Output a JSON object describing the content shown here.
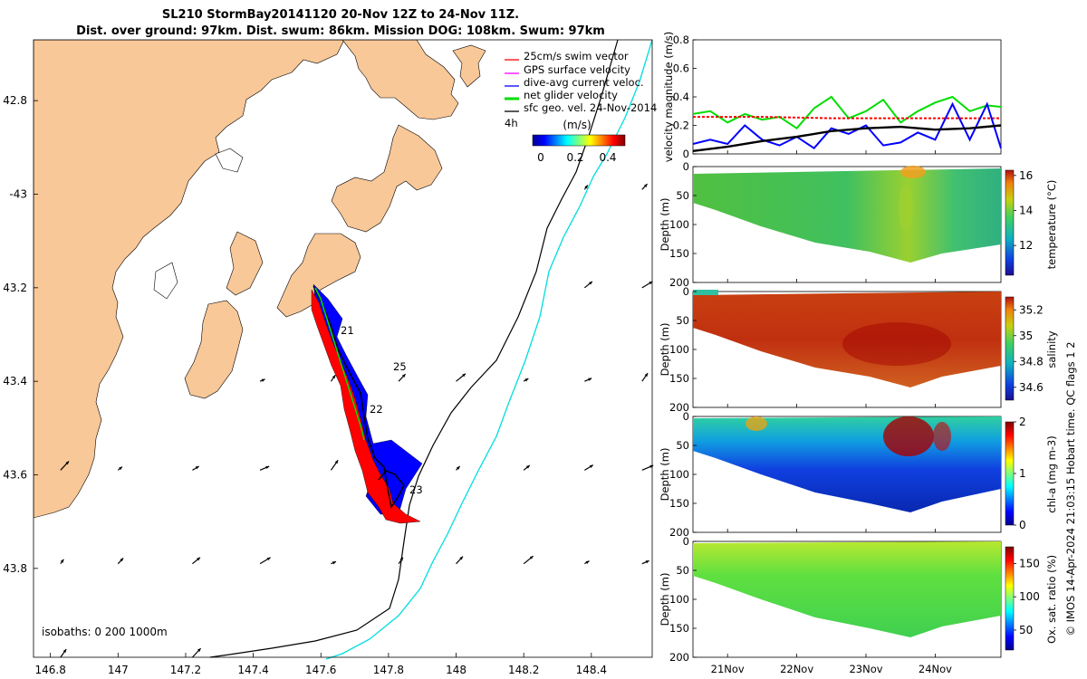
{
  "figure": {
    "title_line1": "SL210 StormBay20141120 20-Nov 12Z to 24-Nov 11Z.",
    "title_line2": "Dist. over ground: 97km. Dist. swum: 86km. Mission DOG: 108km. Swum: 97km",
    "credit": "© IMOS 14-Apr-2024 21:03:15 Hobart time. QC flags 1  2"
  },
  "map": {
    "legend": [
      {
        "label": "25cm/s swim vector",
        "color": "#ff0000"
      },
      {
        "label": "GPS surface velocity",
        "color": "#ff00ff"
      },
      {
        "label": "dive-avg current veloc.",
        "color": "#0000ff"
      },
      {
        "label": "net glider velocity",
        "color": "#00dd00"
      },
      {
        "label": "sfc geo. vel. 24-Nov-2014",
        "color": "#000000"
      }
    ],
    "legend_tag": "4h",
    "colorbar_unit": "(m/s)",
    "colorbar_ticks": [
      "0",
      "0.2",
      "0.4"
    ],
    "isobath_label": "isobaths: 0   200  1000m",
    "waypoints": [
      "21",
      "25",
      "22",
      "23"
    ],
    "land_color": "#f9c898",
    "isobath_200_color": "#000000",
    "isobath_1000_color": "#00dddd"
  },
  "chart_data": [
    {
      "type": "map",
      "xlabel": "",
      "ylabel": "",
      "xlim": [
        146.75,
        148.58
      ],
      "ylim": [
        -43.99,
        -42.67
      ],
      "xticks": [
        146.8,
        147,
        147.2,
        147.4,
        147.6,
        147.8,
        148,
        148.2,
        148.4
      ],
      "xtick_labels": [
        "146.8",
        "147",
        "147.2",
        "147.4",
        "147.6",
        "147.8",
        "148",
        "148.2",
        "148.4"
      ],
      "yticks": [
        -42.8,
        -43,
        -43.2,
        -43.4,
        -43.6,
        -43.8
      ],
      "ytick_labels": [
        "42.8",
        "-43",
        "43.2",
        "43.4",
        "43.6",
        "43.8"
      ],
      "glider_track": [
        [
          147.57,
          -43.19
        ],
        [
          147.59,
          -43.24
        ],
        [
          147.62,
          -43.3
        ],
        [
          147.65,
          -43.37
        ],
        [
          147.68,
          -43.42
        ],
        [
          147.7,
          -43.46
        ],
        [
          147.72,
          -43.52
        ],
        [
          147.75,
          -43.58
        ],
        [
          147.77,
          -43.64
        ],
        [
          147.8,
          -43.69
        ],
        [
          147.83,
          -43.72
        ]
      ]
    },
    {
      "type": "line",
      "ylabel": "velocity magnitude (m/s)",
      "xlim": [
        20.5,
        24.95
      ],
      "ylim": [
        0,
        0.8
      ],
      "yticks": [
        "0",
        "0.2",
        "0.4",
        "0.6",
        "0.8"
      ],
      "series": [
        {
          "name": "",
          "color": "#00dd00",
          "x": [
            20.5,
            20.75,
            21.0,
            21.25,
            21.5,
            21.75,
            22.0,
            22.25,
            22.5,
            22.75,
            23.0,
            23.25,
            23.5,
            23.75,
            24.0,
            24.25,
            24.5,
            24.75,
            24.95
          ],
          "y": [
            0.28,
            0.3,
            0.22,
            0.28,
            0.24,
            0.26,
            0.18,
            0.32,
            0.4,
            0.25,
            0.3,
            0.38,
            0.22,
            0.3,
            0.36,
            0.4,
            0.3,
            0.34,
            0.33
          ]
        },
        {
          "name": "",
          "color": "#ff0000",
          "x": [
            20.5,
            21.5,
            22.5,
            23.5,
            24.95
          ],
          "y": [
            0.26,
            0.26,
            0.25,
            0.25,
            0.25
          ]
        },
        {
          "name": "",
          "color": "#0000ff",
          "x": [
            20.5,
            20.75,
            21.0,
            21.25,
            21.5,
            21.75,
            22.0,
            22.25,
            22.5,
            22.75,
            23.0,
            23.25,
            23.5,
            23.75,
            24.0,
            24.25,
            24.5,
            24.75,
            24.95
          ],
          "y": [
            0.07,
            0.1,
            0.07,
            0.2,
            0.1,
            0.06,
            0.12,
            0.04,
            0.18,
            0.14,
            0.2,
            0.06,
            0.08,
            0.15,
            0.1,
            0.35,
            0.1,
            0.35,
            0.04
          ]
        },
        {
          "name": "",
          "color": "#000000",
          "x": [
            20.5,
            21.0,
            21.5,
            22.0,
            22.5,
            23.0,
            23.5,
            24.0,
            24.5,
            24.95
          ],
          "y": [
            0.02,
            0.05,
            0.09,
            0.12,
            0.16,
            0.18,
            0.19,
            0.17,
            0.18,
            0.2
          ]
        }
      ]
    },
    {
      "type": "heatmap",
      "ylabel": "Depth (m)",
      "colorbar_label": "temperature (°C)",
      "ylim": [
        200,
        0
      ],
      "clim": [
        10.3,
        16.3
      ],
      "cticks": [
        "12",
        "14",
        "16"
      ],
      "cmap": "parula",
      "representative_value": 13
    },
    {
      "type": "heatmap",
      "ylabel": "Depth (m)",
      "colorbar_label": "salinity",
      "ylim": [
        200,
        0
      ],
      "clim": [
        34.5,
        35.3
      ],
      "cticks": [
        "34.6",
        "34.8",
        "35",
        "35.2"
      ],
      "cmap": "parula",
      "representative_value": 35.15
    },
    {
      "type": "heatmap",
      "ylabel": "Depth (m)",
      "colorbar_label": "chl-a (mg m-3)",
      "ylim": [
        200,
        0
      ],
      "clim": [
        0,
        2
      ],
      "cticks": [
        "0",
        "1",
        "2"
      ],
      "cmap": "jet",
      "representative_value": 0.5
    },
    {
      "type": "heatmap",
      "ylabel": "Depth (m)",
      "colorbar_label": "Ox. sat. ratio (%)",
      "ylim": [
        200,
        0
      ],
      "clim": [
        20,
        175
      ],
      "cticks": [
        "50",
        "100",
        "150"
      ],
      "cmap": "jet",
      "representative_value": 110
    },
    {
      "type": "axis",
      "xticks": [
        "21Nov",
        "22Nov",
        "23Nov",
        "24Nov"
      ],
      "xvalues": [
        21,
        22,
        23,
        24
      ],
      "depth_ticks": [
        "0",
        "50",
        "100",
        "150",
        "200"
      ]
    }
  ]
}
